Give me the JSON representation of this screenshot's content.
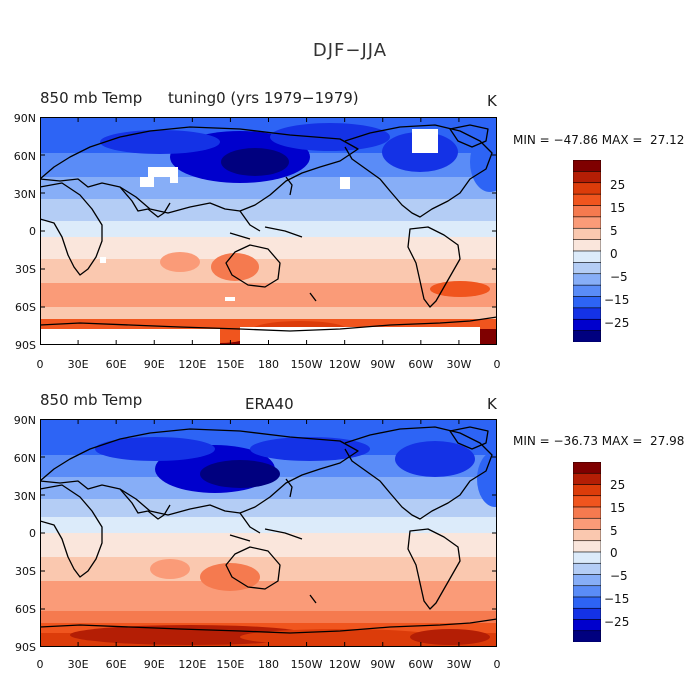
{
  "title": "DJF−JJA",
  "colors": {
    "land_line": "#000000",
    "missing": "#ffffff",
    "scale": [
      "#00007f",
      "#0000cd",
      "#1432e6",
      "#2d64f5",
      "#5a8cf7",
      "#87aef7",
      "#b4cdf5",
      "#dcebfa",
      "#fae6dc",
      "#fac8af",
      "#fa9b78",
      "#f57a4f",
      "#f0551e",
      "#dc3c0a",
      "#b41e05",
      "#7f0000"
    ]
  },
  "colorbar": {
    "labels": [
      "25",
      "15",
      "5",
      "0",
      "−5",
      "−15",
      "−25"
    ]
  },
  "axes": {
    "lat_ticks": [
      "90N",
      "60N",
      "30N",
      "0",
      "30S",
      "60S",
      "90S"
    ],
    "lon_ticks": [
      "0",
      "30E",
      "60E",
      "90E",
      "120E",
      "150E",
      "180",
      "150W",
      "120W",
      "90W",
      "60W",
      "30W",
      "0"
    ]
  },
  "panels": [
    {
      "variable": "850 mb Temp",
      "case": "tuning0 (yrs 1979−1979)",
      "units": "K",
      "min_max": "MIN = −47.86 MAX =  27.12"
    },
    {
      "variable": "850 mb Temp",
      "case": "ERA40",
      "units": "K",
      "min_max": "MIN = −36.73 MAX =  27.98"
    }
  ]
}
